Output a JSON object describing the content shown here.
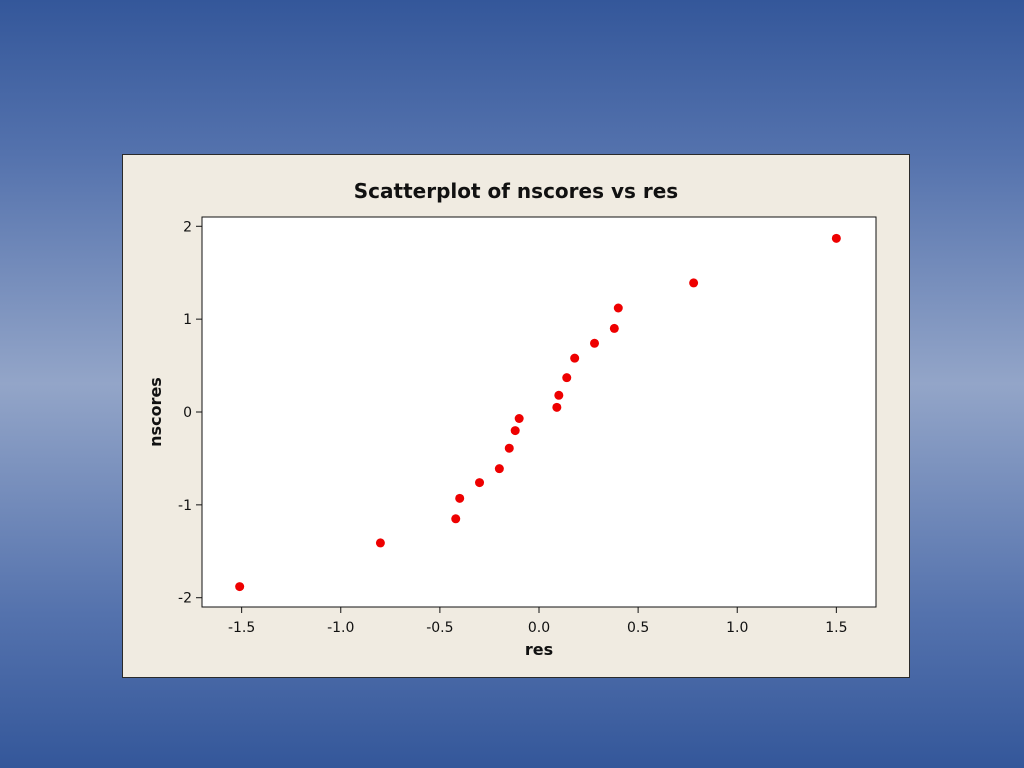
{
  "slide": {
    "background_colors": [
      "#34579a",
      "#93a5c8"
    ]
  },
  "chart_data": {
    "type": "scatter",
    "title": "Scatterplot of nscores vs res",
    "xlabel": "res",
    "ylabel": "nscores",
    "xlim": [
      -1.7,
      1.7
    ],
    "ylim": [
      -2.1,
      2.1
    ],
    "x_ticks": [
      -1.5,
      -1.0,
      -0.5,
      0.0,
      0.5,
      1.0,
      1.5
    ],
    "x_tick_labels": [
      "-1.5",
      "-1.0",
      "-0.5",
      "0.0",
      "0.5",
      "1.0",
      "1.5"
    ],
    "y_ticks": [
      -2,
      -1,
      0,
      1,
      2
    ],
    "y_tick_labels": [
      "-2",
      "-1",
      "0",
      "1",
      "2"
    ],
    "grid": false,
    "marker_color": "#ee0000",
    "points": [
      {
        "x": -1.51,
        "y": -1.88
      },
      {
        "x": -0.8,
        "y": -1.41
      },
      {
        "x": -0.42,
        "y": -1.15
      },
      {
        "x": -0.4,
        "y": -0.93
      },
      {
        "x": -0.3,
        "y": -0.76
      },
      {
        "x": -0.2,
        "y": -0.61
      },
      {
        "x": -0.15,
        "y": -0.39
      },
      {
        "x": -0.12,
        "y": -0.2
      },
      {
        "x": -0.1,
        "y": -0.07
      },
      {
        "x": 0.09,
        "y": 0.05
      },
      {
        "x": 0.1,
        "y": 0.18
      },
      {
        "x": 0.14,
        "y": 0.37
      },
      {
        "x": 0.18,
        "y": 0.58
      },
      {
        "x": 0.28,
        "y": 0.74
      },
      {
        "x": 0.38,
        "y": 0.9
      },
      {
        "x": 0.4,
        "y": 1.12
      },
      {
        "x": 0.78,
        "y": 1.39
      },
      {
        "x": 1.5,
        "y": 1.87
      }
    ]
  }
}
